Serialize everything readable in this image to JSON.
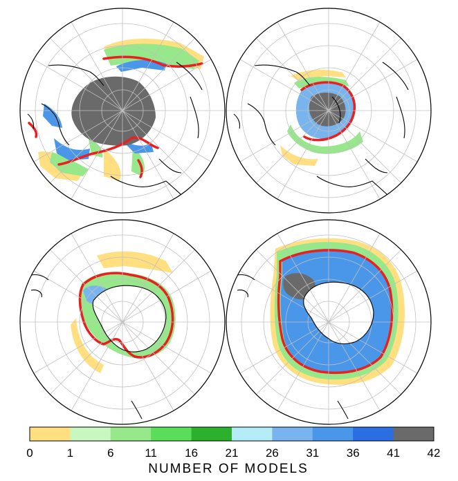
{
  "colorbar": {
    "title": "NUMBER OF MODELS",
    "ticks": [
      "0",
      "1",
      "6",
      "11",
      "16",
      "21",
      "26",
      "31",
      "36",
      "41",
      "42"
    ],
    "colors": [
      "#ffdf80",
      "#c8f8c0",
      "#96e88a",
      "#5ade5a",
      "#2cb12c",
      "#b4ecf8",
      "#78b4ee",
      "#4a96e8",
      "#2a6ee2",
      "#6a6a6a"
    ]
  },
  "panels": [
    {
      "id": "arctic-march",
      "hemisphere": "north"
    },
    {
      "id": "arctic-september",
      "hemisphere": "north"
    },
    {
      "id": "antarctic-february",
      "hemisphere": "south"
    },
    {
      "id": "antarctic-september",
      "hemisphere": "south"
    }
  ],
  "observed_edge_color": "#e82020",
  "land_outline_color": "#000000"
}
